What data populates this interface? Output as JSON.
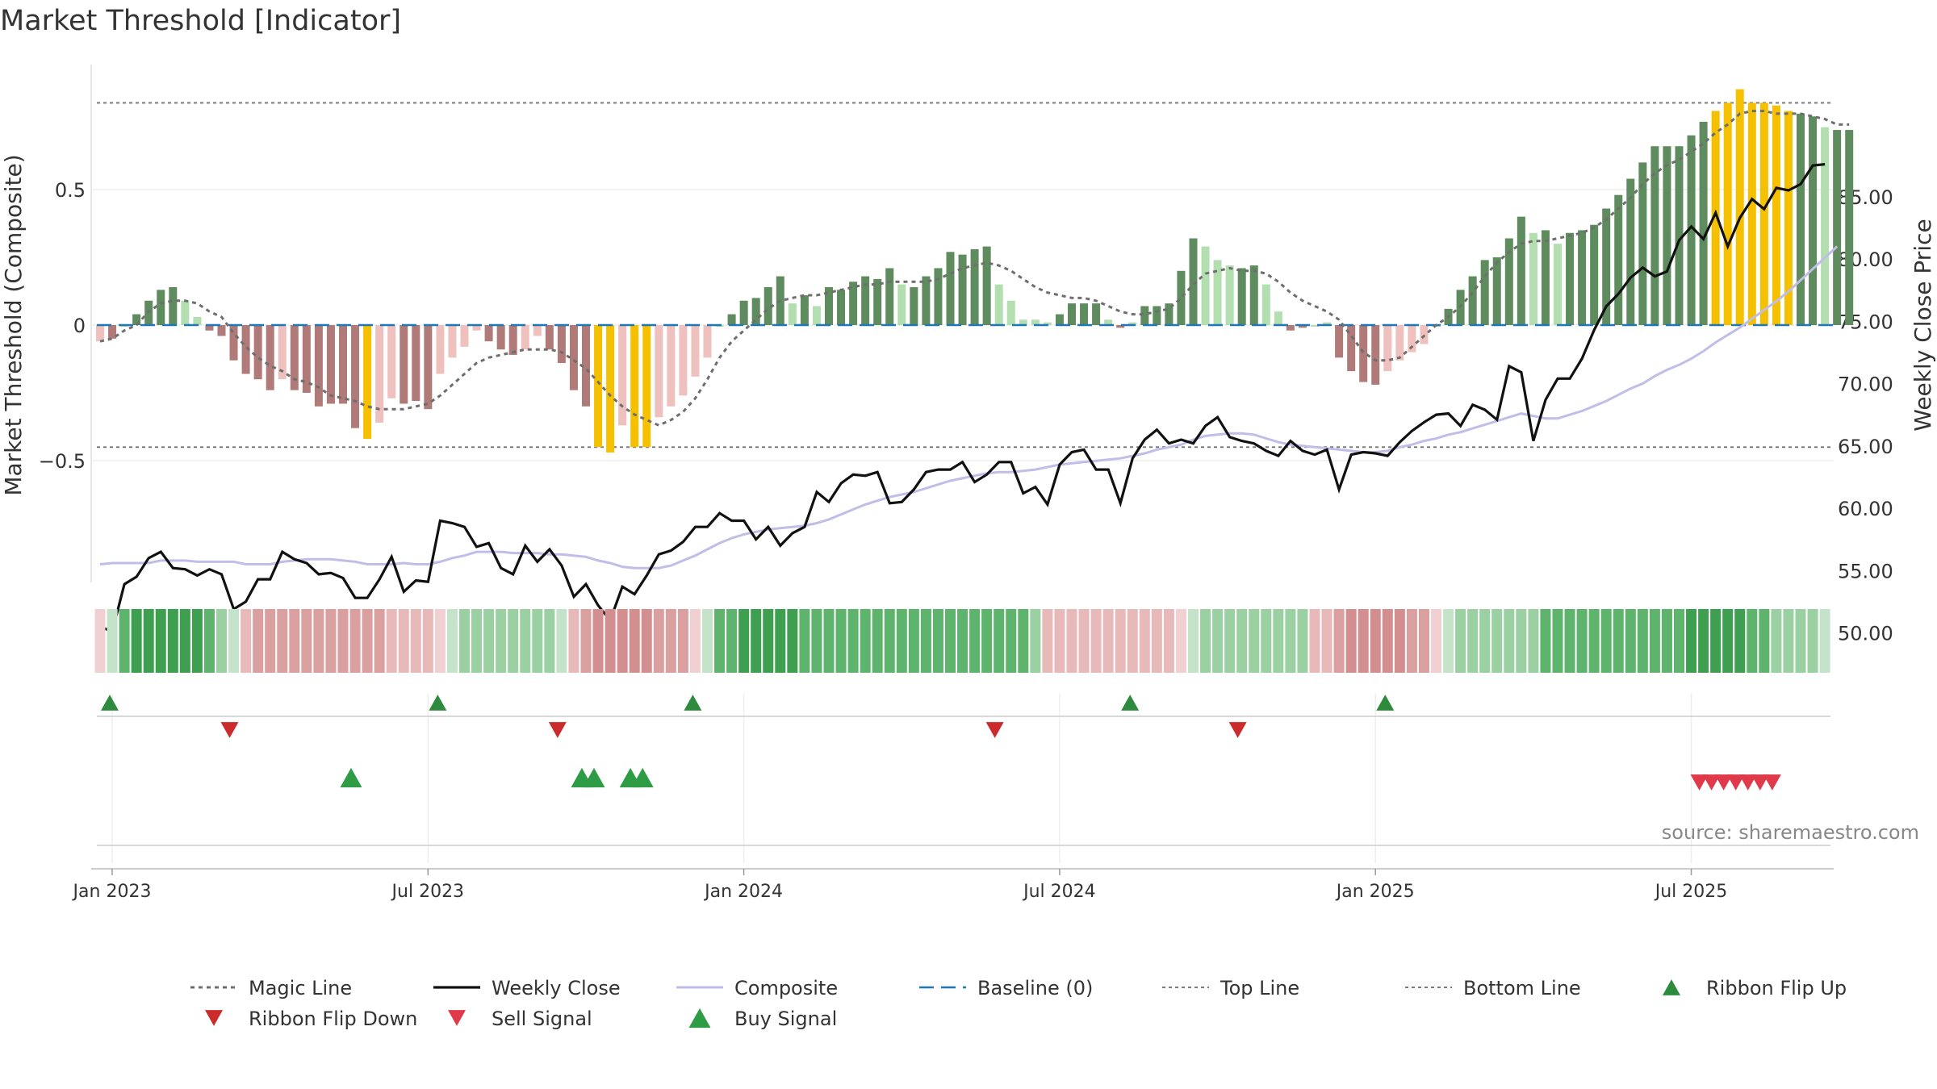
{
  "page": {
    "title": "Market Threshold [Indicator]",
    "source": "source: sharemaestro.com"
  },
  "chart_data": {
    "type": "bar",
    "title": "Market Threshold [Indicator]",
    "ylabel_left": "Market Threshold (Composite)",
    "ylabel_right": "Weekly Close Price",
    "left_ticks": [
      {
        "v": 0.5,
        "label": "0.5"
      },
      {
        "v": 0,
        "label": "0"
      },
      {
        "v": -0.5,
        "label": "−0.5"
      }
    ],
    "right_ticks": [
      {
        "v": 85,
        "label": "85.00"
      },
      {
        "v": 80,
        "label": "80.00"
      },
      {
        "v": 75,
        "label": "75.00"
      },
      {
        "v": 70,
        "label": "70.00"
      },
      {
        "v": 65,
        "label": "65.00"
      },
      {
        "v": 60,
        "label": "60.00"
      },
      {
        "v": 55,
        "label": "55.00"
      },
      {
        "v": 50,
        "label": "50.00"
      }
    ],
    "x_ticks": [
      {
        "week": 0,
        "label": "Jan 2023"
      },
      {
        "week": 26,
        "label": "Jul 2023"
      },
      {
        "week": 52,
        "label": "Jan 2024"
      },
      {
        "week": 78,
        "label": "Jul 2024"
      },
      {
        "week": 104,
        "label": "Jan 2025"
      },
      {
        "week": 130,
        "label": "Jul 2025"
      }
    ],
    "top_line": 0.82,
    "bottom_line": -0.45,
    "baseline": 0,
    "composite_hist": [
      -0.06,
      -0.05,
      0,
      0.04,
      0.09,
      0.13,
      0.14,
      0.09,
      0.03,
      -0.02,
      -0.04,
      -0.13,
      -0.18,
      -0.2,
      -0.24,
      -0.2,
      -0.24,
      -0.25,
      -0.3,
      -0.29,
      -0.29,
      -0.38,
      -0.42,
      -0.36,
      -0.27,
      -0.29,
      -0.28,
      -0.31,
      -0.18,
      -0.12,
      -0.08,
      -0.02,
      -0.06,
      -0.09,
      -0.11,
      -0.09,
      -0.04,
      -0.09,
      -0.14,
      -0.24,
      -0.3,
      -0.45,
      -0.47,
      -0.37,
      -0.45,
      -0.45,
      -0.34,
      -0.3,
      -0.26,
      -0.19,
      -0.12,
      0,
      0.04,
      0.09,
      0.1,
      0.14,
      0.18,
      0.08,
      0.11,
      0.07,
      0.14,
      0.13,
      0.16,
      0.18,
      0.17,
      0.21,
      0.15,
      0.14,
      0.18,
      0.21,
      0.27,
      0.26,
      0.28,
      0.29,
      0.15,
      0.09,
      0.02,
      0.02,
      0.01,
      0.04,
      0.08,
      0.08,
      0.08,
      0.02,
      -0.01,
      0.01,
      0.07,
      0.07,
      0.08,
      0.2,
      0.32,
      0.29,
      0.24,
      0.22,
      0.21,
      0.22,
      0.15,
      0.05,
      -0.02,
      -0.01,
      0,
      0.01,
      -0.12,
      -0.17,
      -0.21,
      -0.22,
      -0.17,
      -0.13,
      -0.1,
      -0.07,
      0,
      0.06,
      0.13,
      0.18,
      0.24,
      0.25,
      0.32,
      0.4,
      0.34,
      0.35,
      0.3,
      0.34,
      0.35,
      0.37,
      0.43,
      0.48,
      0.54,
      0.6,
      0.66,
      0.66,
      0.66,
      0.7,
      0.75,
      0.79,
      0.82,
      0.87,
      0.82,
      0.82,
      0.81,
      0.79,
      0.78,
      0.77,
      0.73,
      0.72,
      0.72
    ],
    "magic_line": [
      -0.06,
      -0.05,
      -0.02,
      0,
      0.05,
      0.08,
      0.09,
      0.09,
      0.08,
      0.05,
      0.03,
      -0.03,
      -0.08,
      -0.12,
      -0.15,
      -0.17,
      -0.2,
      -0.21,
      -0.23,
      -0.26,
      -0.27,
      -0.28,
      -0.3,
      -0.31,
      -0.31,
      -0.31,
      -0.3,
      -0.29,
      -0.26,
      -0.22,
      -0.18,
      -0.14,
      -0.12,
      -0.11,
      -0.1,
      -0.09,
      -0.09,
      -0.09,
      -0.1,
      -0.13,
      -0.16,
      -0.21,
      -0.26,
      -0.3,
      -0.33,
      -0.35,
      -0.37,
      -0.35,
      -0.32,
      -0.27,
      -0.2,
      -0.12,
      -0.06,
      -0.02,
      0.02,
      0.06,
      0.09,
      0.1,
      0.11,
      0.11,
      0.12,
      0.13,
      0.14,
      0.15,
      0.15,
      0.16,
      0.16,
      0.16,
      0.16,
      0.17,
      0.19,
      0.21,
      0.22,
      0.23,
      0.22,
      0.2,
      0.17,
      0.14,
      0.12,
      0.11,
      0.1,
      0.1,
      0.09,
      0.07,
      0.05,
      0.04,
      0.04,
      0.05,
      0.06,
      0.1,
      0.15,
      0.19,
      0.2,
      0.21,
      0.2,
      0.2,
      0.19,
      0.16,
      0.12,
      0.09,
      0.07,
      0.05,
      0.02,
      -0.04,
      -0.1,
      -0.13,
      -0.13,
      -0.12,
      -0.08,
      -0.04,
      0,
      0.03,
      0.07,
      0.12,
      0.18,
      0.23,
      0.27,
      0.3,
      0.31,
      0.31,
      0.32,
      0.33,
      0.34,
      0.36,
      0.39,
      0.43,
      0.47,
      0.52,
      0.56,
      0.59,
      0.61,
      0.64,
      0.67,
      0.71,
      0.74,
      0.78,
      0.79,
      0.79,
      0.78,
      0.78,
      0.78,
      0.77,
      0.76,
      0.74,
      0.74
    ],
    "weekly_close": [
      50.5,
      50.1,
      53.9,
      54.5,
      56,
      56.5,
      55.2,
      55.1,
      54.6,
      55.1,
      54.7,
      51.9,
      52.5,
      54.3,
      54.3,
      56.5,
      55.9,
      55.6,
      54.7,
      54.8,
      54.4,
      52.8,
      52.8,
      54.3,
      56.1,
      53.3,
      54.2,
      54.1,
      59,
      58.8,
      58.5,
      56.9,
      57.2,
      55.2,
      54.7,
      57,
      55.7,
      56.7,
      55.4,
      52.9,
      53.9,
      52.2,
      51,
      53.7,
      53.1,
      54.6,
      56.3,
      56.6,
      57.3,
      58.5,
      58.5,
      59.6,
      59,
      59,
      57.5,
      58.5,
      57,
      58,
      58.5,
      61.3,
      60.5,
      62,
      62.7,
      62.6,
      62.9,
      60.4,
      60.5,
      61.5,
      62.9,
      63.1,
      63.1,
      63.7,
      62.1,
      62.7,
      63.7,
      63.7,
      61.2,
      61.7,
      60.3,
      63.5,
      64.5,
      64.7,
      63.1,
      63.1,
      60.4,
      64,
      65.5,
      66.3,
      65.2,
      65.5,
      65.2,
      66.6,
      67.3,
      65.7,
      65.4,
      65.2,
      64.6,
      64.2,
      65.4,
      64.6,
      64.3,
      64.7,
      61.5,
      64.3,
      64.5,
      64.4,
      64.2,
      65.3,
      66.2,
      66.9,
      67.5,
      67.6,
      66.6,
      68.3,
      67.9,
      67.1,
      71.4,
      70.9,
      65.4,
      68.7,
      70.4,
      70.4,
      72,
      74.3,
      76.2,
      77.2,
      78.5,
      79.3,
      78.6,
      79,
      81.5,
      82.6,
      81.6,
      83.7,
      81,
      83.3,
      84.8,
      84,
      85.7,
      85.5,
      86,
      87.5,
      87.6
    ],
    "composite_line": [
      55.5,
      55.6,
      55.6,
      55.6,
      55.6,
      55.8,
      55.8,
      55.8,
      55.7,
      55.7,
      55.7,
      55.7,
      55.5,
      55.5,
      55.5,
      55.7,
      55.8,
      55.9,
      55.9,
      55.9,
      55.8,
      55.7,
      55.5,
      55.5,
      55.5,
      55.6,
      55.5,
      55.5,
      55.7,
      56,
      56.2,
      56.5,
      56.5,
      56.5,
      56.4,
      56.4,
      56.4,
      56.3,
      56.3,
      56.2,
      56.1,
      55.8,
      55.6,
      55.3,
      55.2,
      55.2,
      55.2,
      55.4,
      55.8,
      56.2,
      56.7,
      57.2,
      57.6,
      57.9,
      58.1,
      58.3,
      58.4,
      58.5,
      58.6,
      58.8,
      59.1,
      59.5,
      59.9,
      60.3,
      60.6,
      60.9,
      61.1,
      61.3,
      61.6,
      61.9,
      62.2,
      62.4,
      62.6,
      62.8,
      62.9,
      62.9,
      63,
      63.1,
      63.3,
      63.5,
      63.6,
      63.7,
      63.8,
      63.9,
      64,
      64.2,
      64.4,
      64.7,
      64.9,
      65.1,
      65.5,
      65.8,
      65.9,
      66,
      66,
      65.9,
      65.6,
      65.3,
      65.1,
      65,
      64.9,
      64.8,
      64.7,
      64.6,
      64.5,
      64.5,
      64.6,
      64.9,
      65.1,
      65.4,
      65.6,
      65.9,
      66.1,
      66.4,
      66.7,
      67,
      67.3,
      67.6,
      67.4,
      67.2,
      67.2,
      67.5,
      67.8,
      68.2,
      68.6,
      69.1,
      69.6,
      70,
      70.6,
      71.1,
      71.5,
      72,
      72.6,
      73.3,
      73.9,
      74.5,
      75.2,
      75.9,
      76.6,
      77.4,
      78.3,
      79.2,
      80.1,
      81
    ],
    "ribbon_colors": [
      "#f0d0d0",
      "#c5e3c9",
      "#5fb46d",
      "#3f9f50",
      "#3f9f50",
      "#3f9f50",
      "#3f9f50",
      "#3f9f50",
      "#3f9f50",
      "#5fb46d",
      "#9bd0a2",
      "#c5e3c9",
      "#e8b9b9",
      "#daa0a0",
      "#daa0a0",
      "#daa0a0",
      "#daa0a0",
      "#daa0a0",
      "#daa0a0",
      "#daa0a0",
      "#daa0a0",
      "#daa0a0",
      "#daa0a0",
      "#daa0a0",
      "#e8b9b9",
      "#e8b9b9",
      "#e8b9b9",
      "#e8b9b9",
      "#f0d0d0",
      "#c5e3c9",
      "#9bd0a2",
      "#9bd0a2",
      "#9bd0a2",
      "#9bd0a2",
      "#9bd0a2",
      "#9bd0a2",
      "#9bd0a2",
      "#9bd0a2",
      "#c5e3c9",
      "#e8b9b9",
      "#daa0a0",
      "#d38f8f",
      "#d38f8f",
      "#d38f8f",
      "#d38f8f",
      "#d38f8f",
      "#daa0a0",
      "#daa0a0",
      "#daa0a0",
      "#f0d0d0",
      "#c5e3c9",
      "#5fb46d",
      "#5fb46d",
      "#3f9f50",
      "#3f9f50",
      "#3f9f50",
      "#3f9f50",
      "#3f9f50",
      "#5fb46d",
      "#5fb46d",
      "#5fb46d",
      "#5fb46d",
      "#5fb46d",
      "#5fb46d",
      "#5fb46d",
      "#5fb46d",
      "#5fb46d",
      "#5fb46d",
      "#5fb46d",
      "#5fb46d",
      "#5fb46d",
      "#5fb46d",
      "#5fb46d",
      "#5fb46d",
      "#5fb46d",
      "#5fb46d",
      "#5fb46d",
      "#9bd0a2",
      "#e8b9b9",
      "#e8b9b9",
      "#e8b9b9",
      "#e8b9b9",
      "#e8b9b9",
      "#e8b9b9",
      "#e8b9b9",
      "#e8b9b9",
      "#e8b9b9",
      "#e8b9b9",
      "#e8b9b9",
      "#f0d0d0",
      "#c5e3c9",
      "#9bd0a2",
      "#9bd0a2",
      "#9bd0a2",
      "#9bd0a2",
      "#9bd0a2",
      "#9bd0a2",
      "#9bd0a2",
      "#9bd0a2",
      "#9bd0a2",
      "#e8b9b9",
      "#e8b9b9",
      "#daa0a0",
      "#d38f8f",
      "#d38f8f",
      "#d38f8f",
      "#d38f8f",
      "#d38f8f",
      "#daa0a0",
      "#daa0a0",
      "#f0d0d0",
      "#c5e3c9",
      "#9bd0a2",
      "#9bd0a2",
      "#9bd0a2",
      "#9bd0a2",
      "#9bd0a2",
      "#9bd0a2",
      "#9bd0a2",
      "#5fb46d",
      "#5fb46d",
      "#5fb46d",
      "#5fb46d",
      "#5fb46d",
      "#5fb46d",
      "#5fb46d",
      "#5fb46d",
      "#5fb46d",
      "#5fb46d",
      "#5fb46d",
      "#5fb46d",
      "#3f9f50",
      "#3f9f50",
      "#3f9f50",
      "#3f9f50",
      "#3f9f50",
      "#5fb46d",
      "#5fb46d",
      "#9bd0a2",
      "#9bd0a2",
      "#9bd0a2",
      "#9bd0a2",
      "#c5e3c9"
    ],
    "ribbon_flip_up_weeks": [
      0,
      27,
      48,
      84,
      105
    ],
    "ribbon_flip_down_weeks": [
      10,
      37,
      73,
      93
    ],
    "buy_signal_weeks": [
      20,
      39,
      40,
      43,
      44
    ],
    "sell_signal_weeks": [
      131,
      132,
      133,
      134,
      135,
      136,
      137
    ],
    "colors": {
      "strong_up": "#5e8c5e",
      "weak_up": "#b2deb0",
      "strong_down": "#b07a78",
      "weak_down": "#eec1be",
      "extreme": "#f5c000",
      "weekly_close": "#111111",
      "composite": "#c0bde8",
      "magic_line": "#6e6e6e",
      "baseline": "#1f77b4",
      "flip_up": "#2e8b3e",
      "flip_down": "#cc2b2b",
      "buy": "#2e9c44",
      "sell": "#e03a4a"
    },
    "legend": [
      {
        "key": "magic",
        "label": "Magic Line"
      },
      {
        "key": "close",
        "label": "Weekly Close"
      },
      {
        "key": "composite",
        "label": "Composite"
      },
      {
        "key": "baseline",
        "label": "Baseline (0)"
      },
      {
        "key": "top",
        "label": "Top Line"
      },
      {
        "key": "bottom",
        "label": "Bottom Line"
      },
      {
        "key": "flipup",
        "label": "Ribbon Flip Up"
      },
      {
        "key": "flipdown",
        "label": "Ribbon Flip Down"
      },
      {
        "key": "sell",
        "label": "Sell Signal"
      },
      {
        "key": "buy",
        "label": "Buy Signal"
      }
    ]
  }
}
